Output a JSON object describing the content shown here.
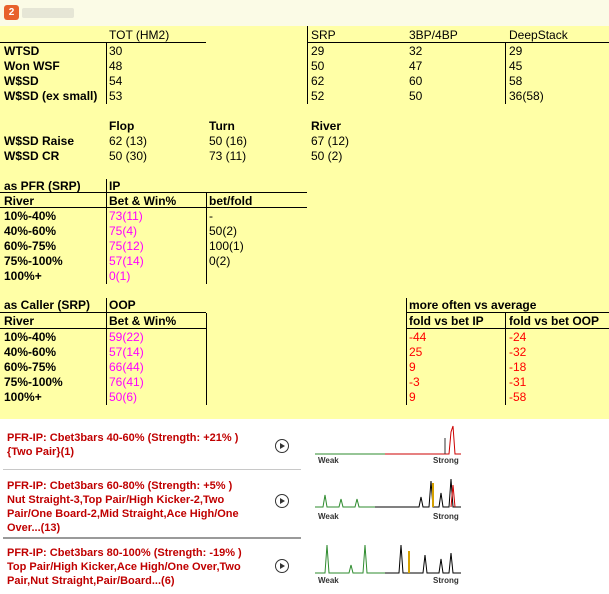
{
  "app": {
    "icon_text": "2"
  },
  "stats": {
    "tot_header": "TOT (HM2)",
    "srp_header": "SRP",
    "bp_header": "3BP/4BP",
    "deep_header": "DeepStack",
    "rows": [
      {
        "label": "WTSD",
        "tot": "30",
        "srp": "29",
        "bp": "32",
        "deep": "29"
      },
      {
        "label": "Won WSF",
        "tot": "48",
        "srp": "50",
        "bp": "47",
        "deep": "45"
      },
      {
        "label": "W$SD",
        "tot": "54",
        "srp": "62",
        "bp": "60",
        "deep": "58"
      },
      {
        "label": "W$SD (ex small)",
        "tot": "53",
        "srp": "52",
        "bp": "50",
        "deep": "36(58)"
      }
    ]
  },
  "streets": {
    "flop_header": "Flop",
    "turn_header": "Turn",
    "river_header": "River",
    "rows": [
      {
        "label": "W$SD Raise",
        "flop": "62 (13)",
        "turn": "50 (16)",
        "river": "67 (12)"
      },
      {
        "label": "W$SD CR",
        "flop": "50 (30)",
        "turn": "73 (11)",
        "river": "50 (2)"
      }
    ]
  },
  "pfr": {
    "title": "as PFR (SRP)",
    "position": "IP",
    "col1": "River",
    "col2": "Bet & Win%",
    "col3": "bet/fold",
    "rows": [
      {
        "label": "10%-40%",
        "betwin": "73(11)",
        "betfold": "-"
      },
      {
        "label": "40%-60%",
        "betwin": "75(4)",
        "betfold": "50(2)"
      },
      {
        "label": "60%-75%",
        "betwin": "75(12)",
        "betfold": "100(1)"
      },
      {
        "label": "75%-100%",
        "betwin": "57(14)",
        "betfold": "0(2)"
      },
      {
        "label": "100%+",
        "betwin": "0(1)",
        "betfold": ""
      }
    ]
  },
  "caller": {
    "title": "as Caller (SRP)",
    "position": "OOP",
    "col1": "River",
    "col2": "Bet & Win%",
    "more_title": "more often vs average",
    "col3": "fold vs bet IP",
    "col4": "fold vs bet OOP",
    "rows": [
      {
        "label": "10%-40%",
        "betwin": "59(22)",
        "fold_ip": "-44",
        "fold_oop": "-24"
      },
      {
        "label": "40%-60%",
        "betwin": "57(14)",
        "fold_ip": "25",
        "fold_oop": "-32"
      },
      {
        "label": "60%-75%",
        "betwin": "66(44)",
        "fold_ip": "9",
        "fold_oop": "-18"
      },
      {
        "label": "75%-100%",
        "betwin": "76(41)",
        "fold_ip": "-3",
        "fold_oop": "-31"
      },
      {
        "label": "100%+",
        "betwin": "50(6)",
        "fold_ip": "9",
        "fold_oop": "-58"
      }
    ]
  },
  "hud": {
    "weak_label": "Weak",
    "strong_label": "Strong",
    "items": [
      {
        "line1": "PFR-IP: Cbet3bars 40-60% (Strength: +21% )",
        "line2": "{Two Pair}(1)",
        "line3": "",
        "line4": ""
      },
      {
        "line1": "PFR-IP: Cbet3bars 60-80% (Strength: +5% )",
        "line2": "Nut Straight-3,Top Pair/High Kicker-2,Two",
        "line3": "Pair/One Board-2,Mid Straight,Ace High/One",
        "line4": "Over...(13)"
      },
      {
        "line1": "PFR-IP: Cbet3bars 80-100% (Strength: -19% )",
        "line2": "Top Pair/High Kicker,Ace High/One Over,Two",
        "line3": "Pair,Nut Straight,Pair/Board...(6)",
        "line4": ""
      }
    ]
  }
}
